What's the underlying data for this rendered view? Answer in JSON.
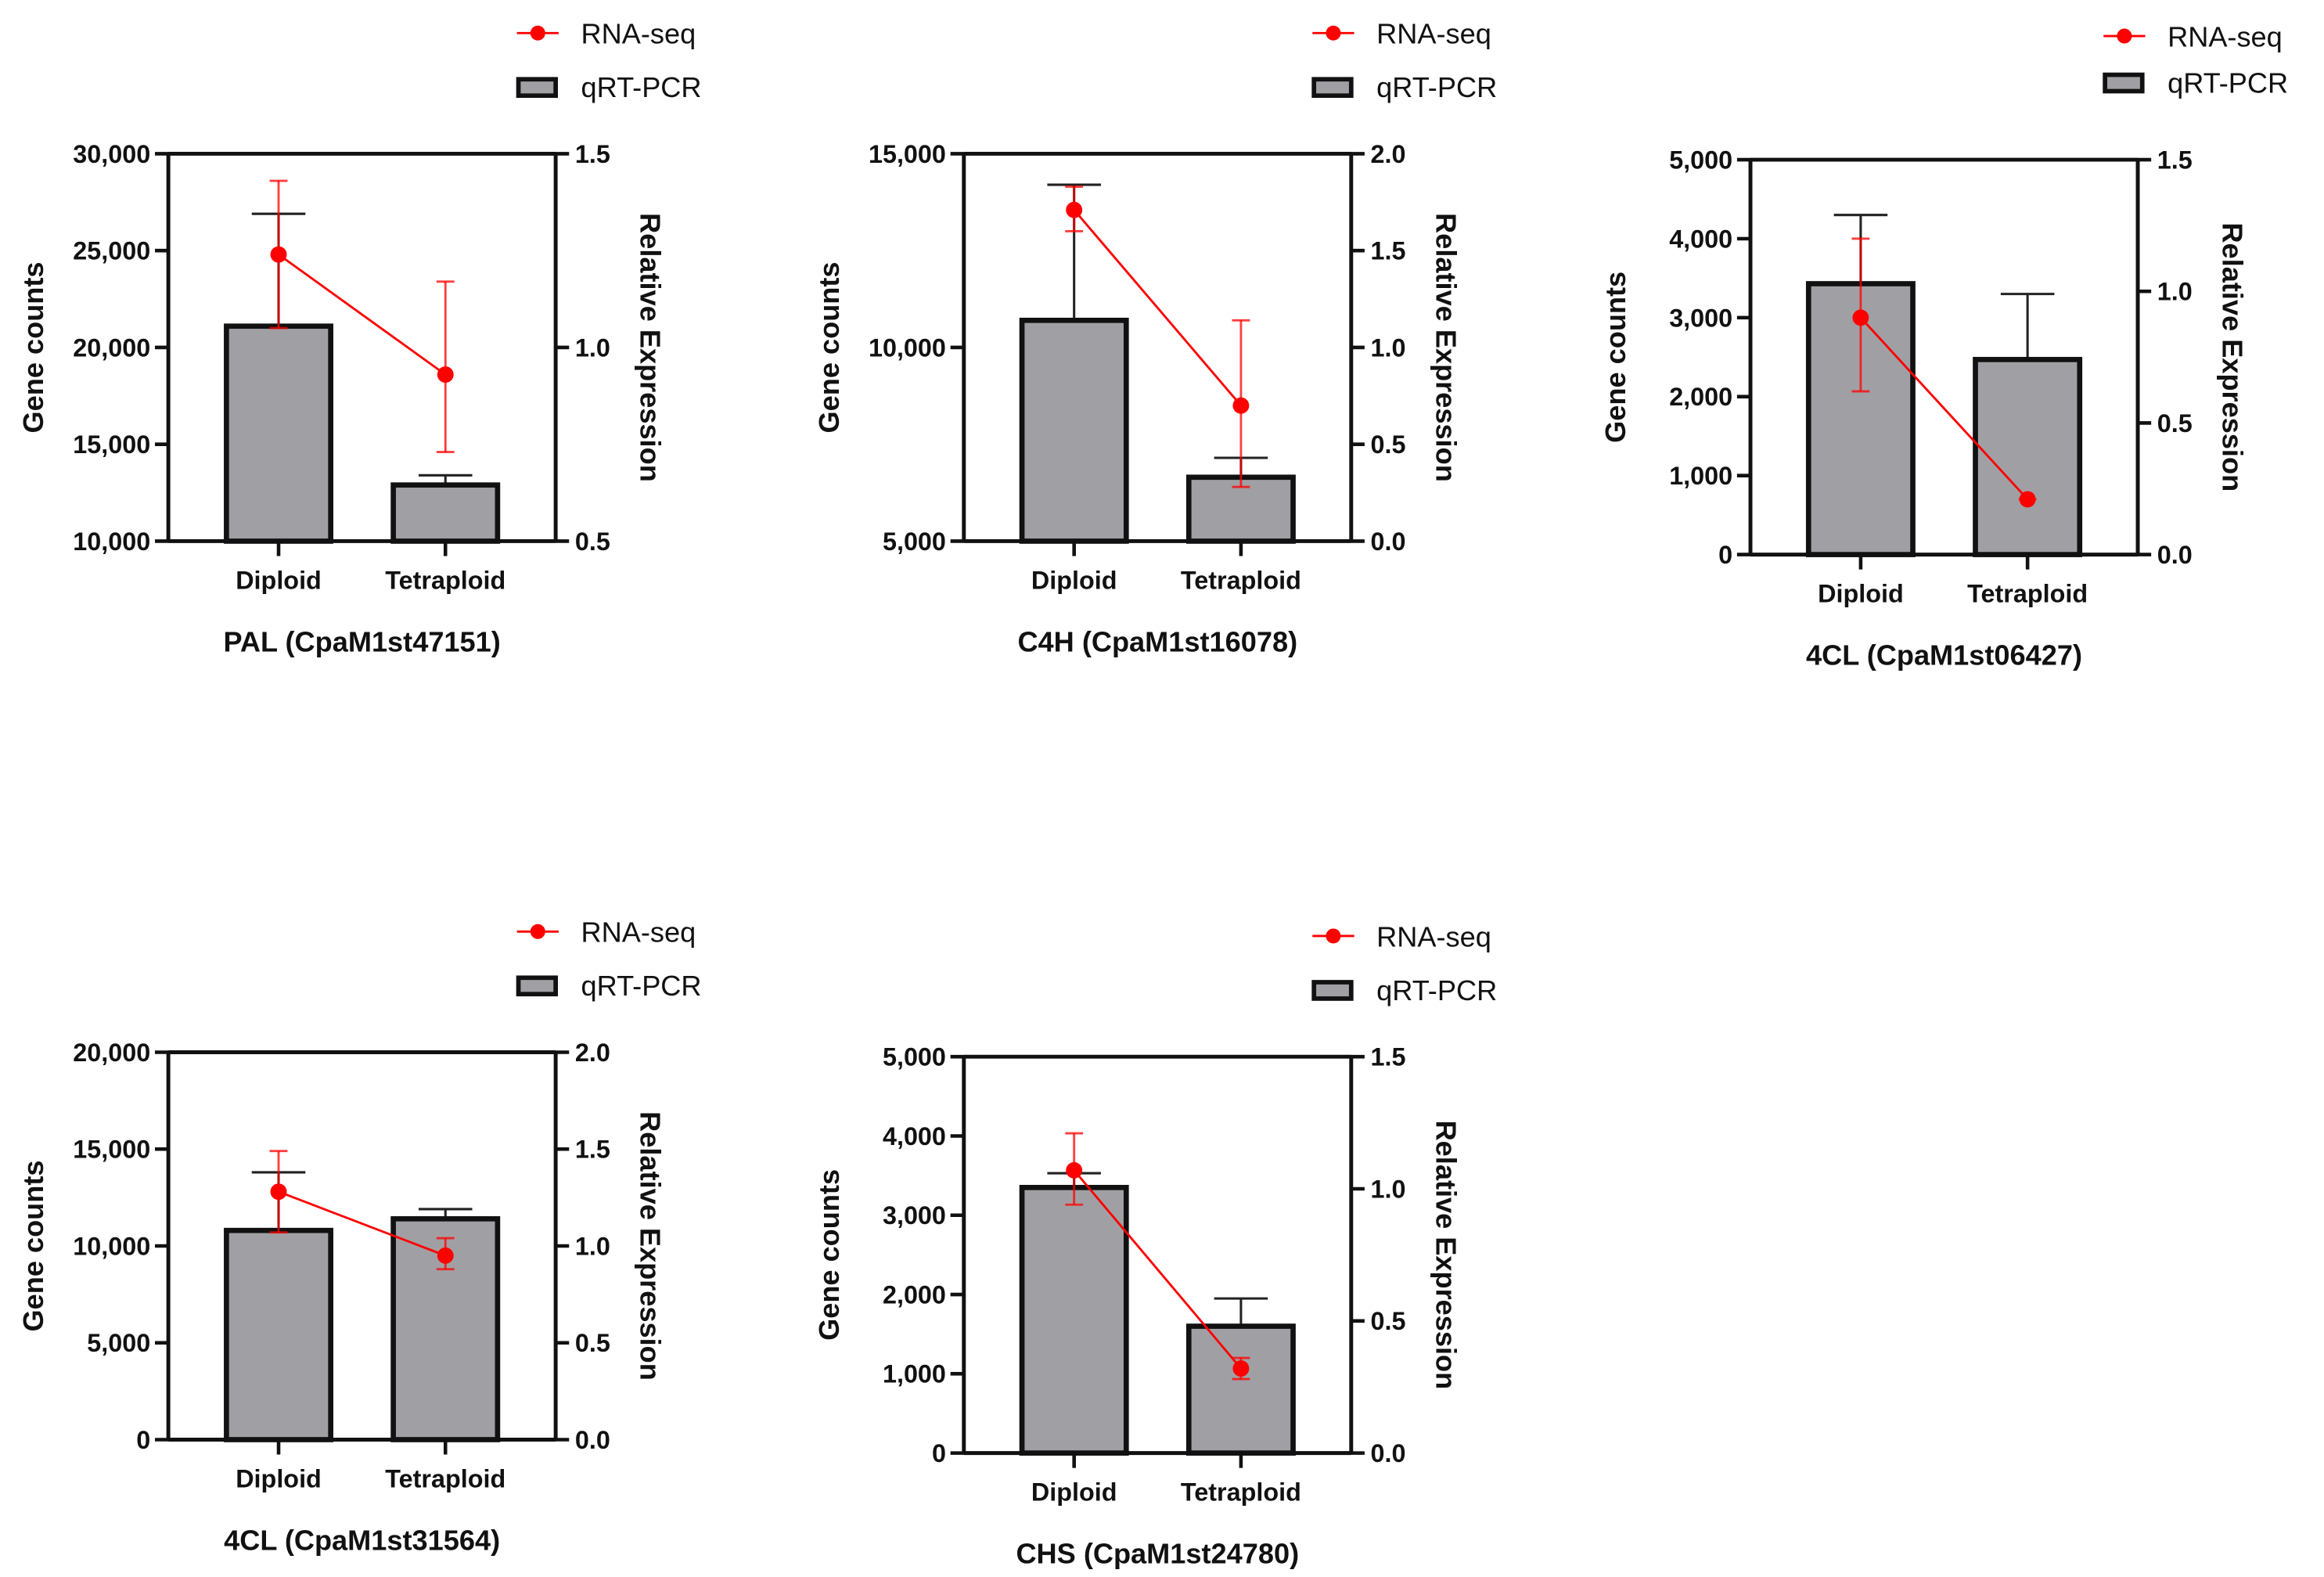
{
  "legend": {
    "line": "RNA-seq",
    "bar": "qRT-PCR"
  },
  "colors": {
    "line": "#ff0000",
    "bar_fill": "#a0a0a4",
    "axis": "#111111"
  },
  "chart_data": [
    {
      "type": "bar",
      "title": "PAL (CpaM1st47151)",
      "categories": [
        "Diploid",
        "Tetraploid"
      ],
      "ylabel": "Gene counts",
      "y2label": "Relative Expression",
      "ylim": [
        10000,
        30000
      ],
      "yticks": [
        "10,000",
        "15,000",
        "20,000",
        "25,000",
        "30,000"
      ],
      "ytick_values": [
        10000,
        15000,
        20000,
        25000,
        30000
      ],
      "y2lim": [
        0.5,
        1.5
      ],
      "y2ticks": [
        "0.5",
        "1.0",
        "1.5"
      ],
      "y2tick_values": [
        0.5,
        1.0,
        1.5
      ],
      "series": [
        {
          "name": "qRT-PCR",
          "axis": "left",
          "values": [
            21100,
            12900
          ],
          "err_upper": [
            26900,
            13400
          ]
        },
        {
          "name": "RNA-seq",
          "axis": "right",
          "values": [
            1.24,
            0.93
          ],
          "err_upper": [
            1.43,
            1.17
          ],
          "err_lower": [
            1.05,
            0.73
          ]
        }
      ]
    },
    {
      "type": "bar",
      "title": "C4H (CpaM1st16078)",
      "categories": [
        "Diploid",
        "Tetraploid"
      ],
      "ylabel": "Gene counts",
      "y2label": "Relative Expression",
      "ylim": [
        5000,
        15000
      ],
      "yticks": [
        "5,000",
        "10,000",
        "15,000"
      ],
      "ytick_values": [
        5000,
        10000,
        15000
      ],
      "y2lim": [
        0,
        2.0
      ],
      "y2ticks": [
        "0.0",
        "0.5",
        "1.0",
        "1.5",
        "2.0"
      ],
      "y2tick_values": [
        0,
        0.5,
        1.0,
        1.5,
        2.0
      ],
      "series": [
        {
          "name": "qRT-PCR",
          "axis": "left",
          "values": [
            10700,
            6650
          ],
          "err_upper": [
            14200,
            7150
          ]
        },
        {
          "name": "RNA-seq",
          "axis": "right",
          "values": [
            1.71,
            0.7
          ],
          "err_upper": [
            1.83,
            1.14
          ],
          "err_lower": [
            1.6,
            0.28
          ]
        }
      ]
    },
    {
      "type": "bar",
      "title": "4CL (CpaM1st06427)",
      "categories": [
        "Diploid",
        "Tetraploid"
      ],
      "ylabel": "Gene counts",
      "y2label": "Relative Expression",
      "ylim": [
        0,
        5000
      ],
      "yticks": [
        "0",
        "1,000",
        "2,000",
        "3,000",
        "4,000",
        "5,000"
      ],
      "ytick_values": [
        0,
        1000,
        2000,
        3000,
        4000,
        5000
      ],
      "y2lim": [
        0,
        1.5
      ],
      "y2ticks": [
        "0.0",
        "0.5",
        "1.0",
        "1.5"
      ],
      "y2tick_values": [
        0,
        0.5,
        1.0,
        1.5
      ],
      "series": [
        {
          "name": "qRT-PCR",
          "axis": "left",
          "values": [
            3430,
            2470
          ],
          "err_upper": [
            4300,
            3300
          ]
        },
        {
          "name": "RNA-seq",
          "axis": "right",
          "values": [
            0.9,
            0.21
          ],
          "err_upper": [
            1.2,
            0.21
          ],
          "err_lower": [
            0.62,
            0.21
          ]
        }
      ]
    },
    {
      "type": "bar",
      "title": "4CL (CpaM1st31564)",
      "categories": [
        "Diploid",
        "Tetraploid"
      ],
      "ylabel": "Gene counts",
      "y2label": "Relative Expression",
      "ylim": [
        0,
        20000
      ],
      "yticks": [
        "0",
        "5,000",
        "10,000",
        "15,000",
        "20,000"
      ],
      "ytick_values": [
        0,
        5000,
        10000,
        15000,
        20000
      ],
      "y2lim": [
        0,
        2.0
      ],
      "y2ticks": [
        "0.0",
        "0.5",
        "1.0",
        "1.5",
        "2.0"
      ],
      "y2tick_values": [
        0,
        0.5,
        1.0,
        1.5,
        2.0
      ],
      "series": [
        {
          "name": "qRT-PCR",
          "axis": "left",
          "values": [
            10800,
            11400
          ],
          "err_upper": [
            13800,
            11900
          ]
        },
        {
          "name": "RNA-seq",
          "axis": "right",
          "values": [
            1.28,
            0.95
          ],
          "err_upper": [
            1.49,
            1.04
          ],
          "err_lower": [
            1.07,
            0.88
          ]
        }
      ]
    },
    {
      "type": "bar",
      "title": "CHS (CpaM1st24780)",
      "categories": [
        "Diploid",
        "Tetraploid"
      ],
      "ylabel": "Gene counts",
      "y2label": "Relative Expression",
      "ylim": [
        0,
        5000
      ],
      "yticks": [
        "0",
        "1,000",
        "2,000",
        "3,000",
        "4,000",
        "5,000"
      ],
      "ytick_values": [
        0,
        1000,
        2000,
        3000,
        4000,
        5000
      ],
      "y2lim": [
        0,
        1.5
      ],
      "y2ticks": [
        "0.0",
        "0.5",
        "1.0",
        "1.5"
      ],
      "y2tick_values": [
        0,
        0.5,
        1.0,
        1.5
      ],
      "series": [
        {
          "name": "qRT-PCR",
          "axis": "left",
          "values": [
            3350,
            1600
          ],
          "err_upper": [
            3530,
            1950
          ]
        },
        {
          "name": "RNA-seq",
          "axis": "right",
          "values": [
            1.07,
            0.32
          ],
          "err_upper": [
            1.21,
            0.36
          ],
          "err_lower": [
            0.94,
            0.28
          ]
        }
      ]
    }
  ]
}
